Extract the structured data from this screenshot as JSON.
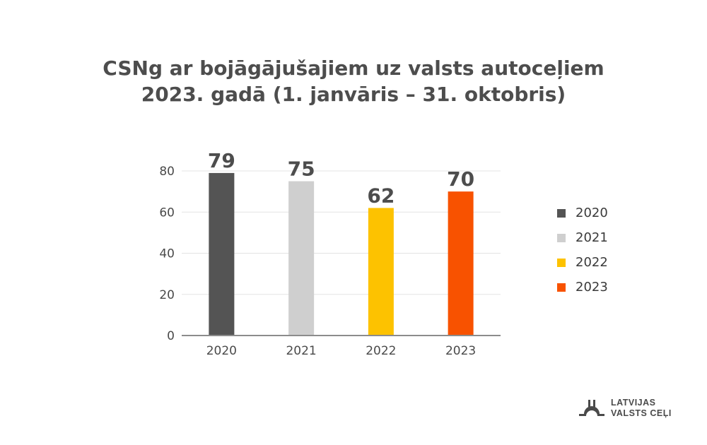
{
  "chart_data": {
    "type": "bar",
    "title": "CSNg ar bojāgājušajiem uz valsts autoceļiem",
    "subtitle": "2023. gadā (1. janvāris – 31. oktobris)",
    "categories": [
      "2020",
      "2021",
      "2022",
      "2023"
    ],
    "values": [
      79,
      75,
      62,
      70
    ],
    "data_labels": [
      "79",
      "75",
      "62",
      "70"
    ],
    "colors": [
      "#545454",
      "#cfcfcf",
      "#fdc200",
      "#f85200"
    ],
    "ylim": [
      0,
      80
    ],
    "yticks": [
      "0",
      "20",
      "40",
      "60",
      "80"
    ],
    "grid": true,
    "legend": {
      "placement": "right",
      "entries": [
        "2020",
        "2021",
        "2022",
        "2023"
      ]
    }
  },
  "logo": {
    "line1": "LATVIJAS",
    "line2": "VALSTS CEĻI"
  }
}
